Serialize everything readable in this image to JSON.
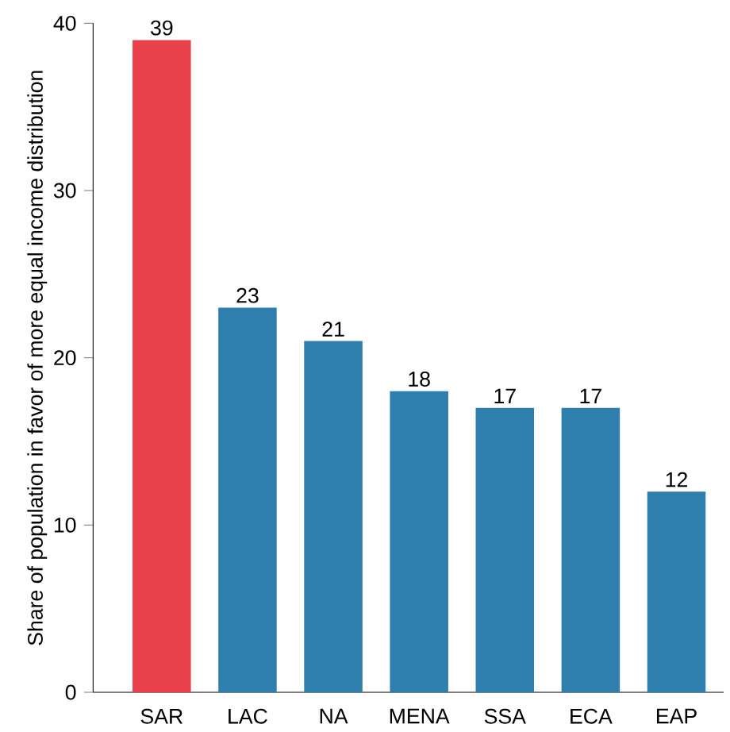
{
  "chart_data": {
    "type": "bar",
    "ylabel": "Share of population in favor of more equal income distribution",
    "categories": [
      "SAR",
      "LAC",
      "NA",
      "MENA",
      "SSA",
      "ECA",
      "EAP"
    ],
    "values": [
      39,
      23,
      21,
      18,
      17,
      17,
      12
    ],
    "colors": [
      "#e8414b",
      "#2f7fae",
      "#2f7fae",
      "#2f7fae",
      "#2f7fae",
      "#2f7fae",
      "#2f7fae"
    ],
    "ylim": [
      0,
      40
    ],
    "yticks": [
      0,
      10,
      20,
      30,
      40
    ],
    "data_labels": true,
    "grid": false
  }
}
